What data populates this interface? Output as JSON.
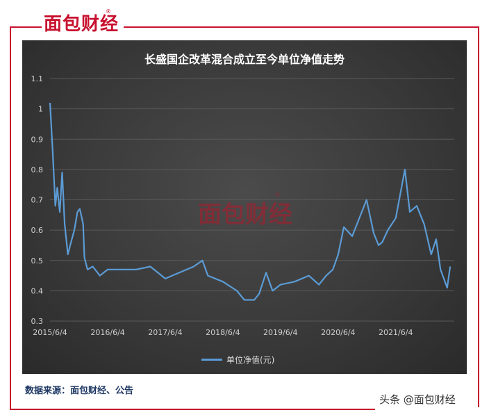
{
  "brand": {
    "logo_text": "面包财经",
    "reg_mark": "®"
  },
  "source_note": "数据来源：面包财经、公告",
  "footer_watermark": "头条 @面包财经",
  "colors": {
    "accent": "#c8102e",
    "line": "#5b9bd5",
    "background": "#3a3a3a"
  },
  "chart_data": {
    "type": "line",
    "title": "长盛国企改革混合成立至今单位净值走势",
    "xlabel": "",
    "ylabel": "",
    "ylim": [
      0.3,
      1.1
    ],
    "yticks": [
      "0.3",
      "0.4",
      "0.5",
      "0.6",
      "0.7",
      "0.8",
      "0.9",
      "1",
      "1.1"
    ],
    "x_tick_labels": [
      "2015/6/4",
      "2016/6/4",
      "2017/6/4",
      "2018/6/4",
      "2019/6/4",
      "2020/6/4",
      "2021/6/4"
    ],
    "grid": true,
    "legend_position": "bottom",
    "series": [
      {
        "name": "单位净值(元)",
        "x": [
          "2015-06-04",
          "2015-06-20",
          "2015-07-08",
          "2015-07-20",
          "2015-08-05",
          "2015-08-20",
          "2015-09-05",
          "2015-09-25",
          "2015-10-15",
          "2015-11-05",
          "2015-11-25",
          "2015-12-10",
          "2015-12-31",
          "2016-01-08",
          "2016-01-28",
          "2016-03-01",
          "2016-04-15",
          "2016-06-04",
          "2016-09-01",
          "2016-12-01",
          "2017-03-01",
          "2017-06-04",
          "2017-09-01",
          "2017-12-01",
          "2018-01-25",
          "2018-03-01",
          "2018-06-04",
          "2018-09-01",
          "2018-10-18",
          "2018-12-20",
          "2019-01-20",
          "2019-03-05",
          "2019-04-15",
          "2019-06-04",
          "2019-09-01",
          "2019-12-01",
          "2020-02-03",
          "2020-03-20",
          "2020-05-01",
          "2020-06-04",
          "2020-07-10",
          "2020-09-01",
          "2020-12-01",
          "2021-01-15",
          "2021-02-15",
          "2021-03-10",
          "2021-04-15",
          "2021-06-04",
          "2021-08-01",
          "2021-09-01",
          "2021-10-15",
          "2021-12-01",
          "2022-01-15",
          "2022-02-15",
          "2022-03-15",
          "2022-04-26",
          "2022-05-15"
        ],
        "y": [
          1.02,
          0.87,
          0.68,
          0.74,
          0.66,
          0.79,
          0.62,
          0.52,
          0.56,
          0.6,
          0.66,
          0.67,
          0.62,
          0.51,
          0.47,
          0.48,
          0.45,
          0.47,
          0.47,
          0.47,
          0.48,
          0.44,
          0.46,
          0.48,
          0.5,
          0.45,
          0.43,
          0.4,
          0.37,
          0.37,
          0.39,
          0.46,
          0.4,
          0.42,
          0.43,
          0.45,
          0.42,
          0.45,
          0.47,
          0.52,
          0.61,
          0.58,
          0.7,
          0.59,
          0.55,
          0.56,
          0.6,
          0.64,
          0.8,
          0.66,
          0.68,
          0.62,
          0.52,
          0.57,
          0.47,
          0.41,
          0.48
        ]
      }
    ]
  }
}
